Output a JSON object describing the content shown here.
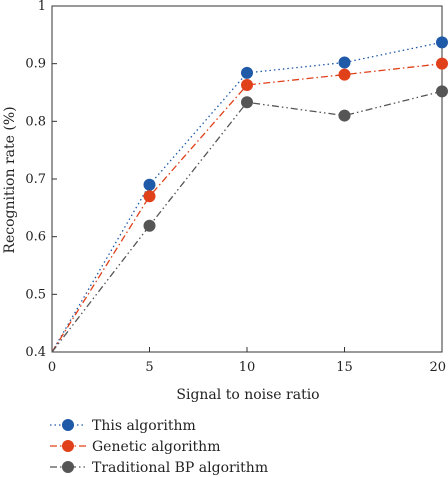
{
  "chart_data": {
    "type": "line",
    "title": "",
    "xlabel": "Signal to noise ratio",
    "ylabel": "Recognition rate (%)",
    "x": [
      0,
      5,
      10,
      15,
      20
    ],
    "xlim": [
      0,
      20
    ],
    "ylim": [
      0.4,
      1.0
    ],
    "xticks": [
      "0",
      "5",
      "10",
      "15",
      "20"
    ],
    "yticks": [
      "0.4",
      "0.5",
      "0.6",
      "0.7",
      "0.8",
      "0.9",
      "1"
    ],
    "grid": false,
    "legend_position": "bottom",
    "series": [
      {
        "name": "This algorithm",
        "color": "#1f5aa8",
        "dash": "dotted",
        "values": [
          0.4,
          0.69,
          0.884,
          0.902,
          0.937
        ]
      },
      {
        "name": "Genetic algorithm",
        "color": "#e0401a",
        "dash": "dashdot",
        "values": [
          0.4,
          0.67,
          0.863,
          0.881,
          0.9
        ]
      },
      {
        "name": "Traditional BP algorithm",
        "color": "#555555",
        "dash": "dashdotdot",
        "values": [
          0.4,
          0.619,
          0.833,
          0.81,
          0.852
        ]
      }
    ]
  }
}
